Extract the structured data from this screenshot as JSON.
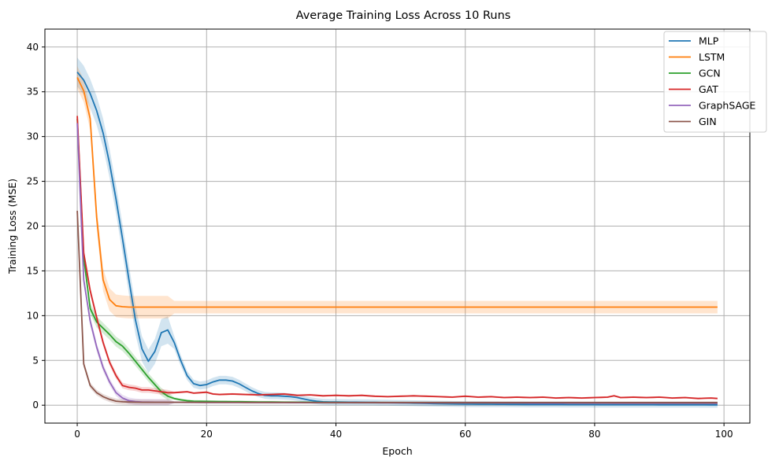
{
  "chart_data": {
    "type": "line",
    "title": "Average Training Loss Across 10 Runs",
    "xlabel": "Epoch",
    "ylabel": "Training Loss (MSE)",
    "xlim": [
      -5,
      104
    ],
    "ylim": [
      -2,
      42
    ],
    "xticks": [
      0,
      20,
      40,
      60,
      80,
      100
    ],
    "yticks": [
      0,
      5,
      10,
      15,
      20,
      25,
      30,
      35,
      40
    ],
    "grid": true,
    "legend_position": "top-right",
    "x_range": [
      0,
      99
    ],
    "series": [
      {
        "name": "MLP",
        "color": "#1f77b4",
        "points": [
          [
            0,
            37.2
          ],
          [
            1,
            36.3
          ],
          [
            2,
            34.8
          ],
          [
            3,
            32.9
          ],
          [
            4,
            30.4
          ],
          [
            5,
            27.0
          ],
          [
            6,
            23.0
          ],
          [
            7,
            18.6
          ],
          [
            8,
            14.0
          ],
          [
            9,
            9.5
          ],
          [
            10,
            6.3
          ],
          [
            11,
            4.9
          ],
          [
            12,
            6.0
          ],
          [
            13,
            8.1
          ],
          [
            14,
            8.4
          ],
          [
            15,
            7.0
          ],
          [
            16,
            5.0
          ],
          [
            17,
            3.3
          ],
          [
            18,
            2.4
          ],
          [
            19,
            2.2
          ],
          [
            20,
            2.3
          ],
          [
            21,
            2.6
          ],
          [
            22,
            2.8
          ],
          [
            23,
            2.8
          ],
          [
            24,
            2.7
          ],
          [
            25,
            2.4
          ],
          [
            26,
            2.0
          ],
          [
            27,
            1.6
          ],
          [
            28,
            1.3
          ],
          [
            29,
            1.1
          ],
          [
            30,
            1.05
          ],
          [
            31,
            1.05
          ],
          [
            32,
            1.0
          ],
          [
            33,
            0.95
          ],
          [
            34,
            0.85
          ],
          [
            35,
            0.7
          ],
          [
            36,
            0.55
          ],
          [
            37,
            0.45
          ],
          [
            38,
            0.38
          ],
          [
            39,
            0.35
          ],
          [
            40,
            0.35
          ],
          [
            45,
            0.32
          ],
          [
            50,
            0.25
          ],
          [
            55,
            0.18
          ],
          [
            60,
            0.12
          ],
          [
            70,
            0.08
          ],
          [
            80,
            0.06
          ],
          [
            90,
            0.05
          ],
          [
            99,
            0.04
          ]
        ],
        "band": 0.9
      },
      {
        "name": "LSTM",
        "color": "#ff7f0e",
        "points": [
          [
            0,
            36.6
          ],
          [
            1,
            35.1
          ],
          [
            2,
            32.0
          ],
          [
            3,
            21.0
          ],
          [
            4,
            14.0
          ],
          [
            5,
            11.8
          ],
          [
            6,
            11.1
          ],
          [
            7,
            11.0
          ],
          [
            8,
            10.95
          ],
          [
            10,
            10.95
          ],
          [
            99,
            10.95
          ]
        ],
        "band": 0.7
      },
      {
        "name": "GCN",
        "color": "#2ca02c",
        "points": [
          [
            0,
            32.0
          ],
          [
            1,
            16.5
          ],
          [
            2,
            10.8
          ],
          [
            3,
            9.3
          ],
          [
            4,
            8.6
          ],
          [
            5,
            7.9
          ],
          [
            6,
            7.1
          ],
          [
            7,
            6.6
          ],
          [
            8,
            5.8
          ],
          [
            9,
            4.9
          ],
          [
            10,
            4.0
          ],
          [
            11,
            3.1
          ],
          [
            12,
            2.3
          ],
          [
            13,
            1.5
          ],
          [
            14,
            1.0
          ],
          [
            15,
            0.75
          ],
          [
            16,
            0.6
          ],
          [
            17,
            0.5
          ],
          [
            18,
            0.45
          ],
          [
            20,
            0.42
          ],
          [
            30,
            0.35
          ],
          [
            40,
            0.3
          ],
          [
            60,
            0.25
          ],
          [
            80,
            0.22
          ],
          [
            99,
            0.2
          ]
        ],
        "band": 0.35
      },
      {
        "name": "GAT",
        "color": "#d62728",
        "points": [
          [
            0,
            32.3
          ],
          [
            1,
            17.0
          ],
          [
            2,
            12.8
          ],
          [
            3,
            9.8
          ],
          [
            4,
            7.0
          ],
          [
            5,
            4.8
          ],
          [
            6,
            3.3
          ],
          [
            7,
            2.2
          ],
          [
            8,
            2.0
          ],
          [
            9,
            1.9
          ],
          [
            10,
            1.7
          ],
          [
            11,
            1.7
          ],
          [
            12,
            1.6
          ],
          [
            13,
            1.5
          ],
          [
            14,
            1.4
          ],
          [
            15,
            1.4
          ],
          [
            16,
            1.45
          ],
          [
            17,
            1.5
          ],
          [
            18,
            1.35
          ],
          [
            19,
            1.4
          ],
          [
            20,
            1.45
          ],
          [
            21,
            1.25
          ],
          [
            22,
            1.2
          ],
          [
            24,
            1.25
          ],
          [
            26,
            1.2
          ],
          [
            28,
            1.15
          ],
          [
            30,
            1.2
          ],
          [
            32,
            1.25
          ],
          [
            34,
            1.1
          ],
          [
            36,
            1.15
          ],
          [
            38,
            1.05
          ],
          [
            40,
            1.1
          ],
          [
            42,
            1.05
          ],
          [
            44,
            1.1
          ],
          [
            46,
            1.0
          ],
          [
            48,
            0.95
          ],
          [
            50,
            1.0
          ],
          [
            52,
            1.05
          ],
          [
            54,
            1.0
          ],
          [
            56,
            0.95
          ],
          [
            58,
            0.9
          ],
          [
            60,
            1.0
          ],
          [
            62,
            0.9
          ],
          [
            64,
            0.95
          ],
          [
            66,
            0.85
          ],
          [
            68,
            0.9
          ],
          [
            70,
            0.85
          ],
          [
            72,
            0.9
          ],
          [
            74,
            0.8
          ],
          [
            76,
            0.85
          ],
          [
            78,
            0.8
          ],
          [
            80,
            0.85
          ],
          [
            82,
            0.9
          ],
          [
            83,
            1.05
          ],
          [
            84,
            0.85
          ],
          [
            86,
            0.9
          ],
          [
            88,
            0.85
          ],
          [
            90,
            0.9
          ],
          [
            92,
            0.8
          ],
          [
            94,
            0.85
          ],
          [
            96,
            0.75
          ],
          [
            98,
            0.8
          ],
          [
            99,
            0.75
          ]
        ],
        "band": 0.25
      },
      {
        "name": "GraphSAGE",
        "color": "#9467bd",
        "points": [
          [
            0,
            31.5
          ],
          [
            1,
            14.0
          ],
          [
            2,
            9.4
          ],
          [
            3,
            6.5
          ],
          [
            4,
            4.2
          ],
          [
            5,
            2.6
          ],
          [
            6,
            1.4
          ],
          [
            7,
            0.8
          ],
          [
            8,
            0.5
          ],
          [
            9,
            0.4
          ],
          [
            10,
            0.35
          ],
          [
            15,
            0.32
          ],
          [
            20,
            0.3
          ],
          [
            40,
            0.28
          ],
          [
            60,
            0.25
          ],
          [
            80,
            0.22
          ],
          [
            99,
            0.2
          ]
        ],
        "band": 0.3
      },
      {
        "name": "GIN",
        "color": "#8c564b",
        "points": [
          [
            0,
            21.7
          ],
          [
            1,
            4.6
          ],
          [
            2,
            2.2
          ],
          [
            3,
            1.4
          ],
          [
            4,
            0.95
          ],
          [
            5,
            0.65
          ],
          [
            6,
            0.45
          ],
          [
            7,
            0.38
          ],
          [
            8,
            0.35
          ],
          [
            10,
            0.33
          ],
          [
            20,
            0.32
          ],
          [
            40,
            0.3
          ],
          [
            60,
            0.3
          ],
          [
            80,
            0.3
          ],
          [
            99,
            0.3
          ]
        ],
        "band": 0.25
      }
    ]
  }
}
